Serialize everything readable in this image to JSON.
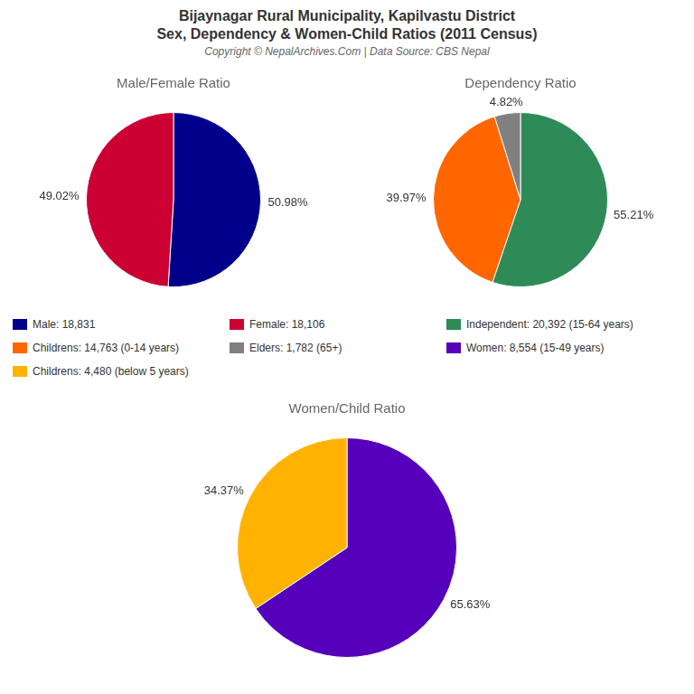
{
  "title": "Bijaynagar Rural Municipality, Kapilvastu District",
  "subtitle": "Sex, Dependency & Women-Child Ratios (2011 Census)",
  "annotations": [
    "Copyright © NepalArchives.Com | Data Source: CBS Nepal"
  ],
  "legend": "center",
  "chart_data": [
    {
      "type": "pie",
      "title": "Male/Female Ratio",
      "categories": [
        "Male: 18,831",
        "Female: 18,106"
      ],
      "values": [
        50.98,
        49.02
      ],
      "value_labels": [
        "50.98%",
        "49.02%"
      ],
      "colors": [
        "#00008B",
        "#CC0033"
      ],
      "data_labels": true
    },
    {
      "type": "pie",
      "title": "Dependency Ratio",
      "categories": [
        "Independent: 20,392 (15-64 years)",
        "Childrens: 14,763 (0-14 years)",
        "Elders: 1,782 (65+)"
      ],
      "values": [
        55.21,
        39.97,
        4.82
      ],
      "value_labels": [
        "55.21%",
        "39.97%",
        "4.82%"
      ],
      "colors": [
        "#2E8B57",
        "#FF6600",
        "#808080"
      ],
      "data_labels": true
    },
    {
      "type": "pie",
      "title": "Women/Child Ratio",
      "categories": [
        "Women: 8,554 (15-49 years)",
        "Childrens: 4,480 (below 5 years)"
      ],
      "values": [
        65.63,
        34.37
      ],
      "value_labels": [
        "65.63%",
        "34.37%"
      ],
      "colors": [
        "#5500BB",
        "#FFB300"
      ],
      "data_labels": true
    }
  ]
}
